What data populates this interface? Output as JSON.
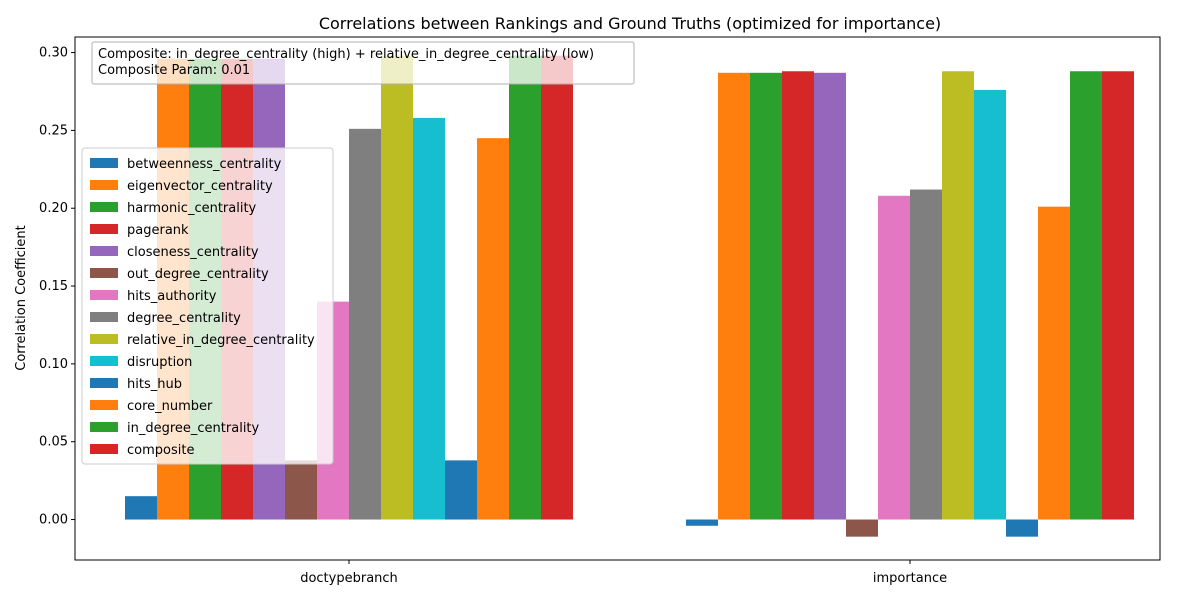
{
  "chart_data": {
    "type": "bar",
    "title": "Correlations between Rankings and Ground Truths (optimized for importance)",
    "xlabel": "",
    "ylabel": "Correlation Coefficient",
    "categories": [
      "doctypebranch",
      "importance"
    ],
    "ylim": [
      -0.026,
      0.31
    ],
    "yticks": [
      "0.00",
      "0.05",
      "0.10",
      "0.15",
      "0.20",
      "0.25",
      "0.30"
    ],
    "grid": false,
    "legend_placement": "center-left",
    "annotation": {
      "line1": "Composite: in_degree_centrality (high) + relative_in_degree_centrality (low)",
      "line2": "Composite Param: 0.01"
    },
    "series": [
      {
        "name": "betweenness_centrality",
        "color": "#1f77b4",
        "values": [
          0.015,
          -0.004
        ]
      },
      {
        "name": "eigenvector_centrality",
        "color": "#ff7f0e",
        "values": [
          0.296,
          0.287
        ]
      },
      {
        "name": "harmonic_centrality",
        "color": "#2ca02c",
        "values": [
          0.296,
          0.287
        ]
      },
      {
        "name": "pagerank",
        "color": "#d62728",
        "values": [
          0.296,
          0.288
        ]
      },
      {
        "name": "closeness_centrality",
        "color": "#9467bd",
        "values": [
          0.296,
          0.287
        ]
      },
      {
        "name": "out_degree_centrality",
        "color": "#8c564b",
        "values": [
          0.038,
          -0.011
        ]
      },
      {
        "name": "hits_authority",
        "color": "#e377c2",
        "values": [
          0.14,
          0.208
        ]
      },
      {
        "name": "degree_centrality",
        "color": "#7f7f7f",
        "values": [
          0.251,
          0.212
        ]
      },
      {
        "name": "relative_in_degree_centrality",
        "color": "#bcbd22",
        "values": [
          0.298,
          0.288
        ]
      },
      {
        "name": "disruption",
        "color": "#17becf",
        "values": [
          0.258,
          0.276
        ]
      },
      {
        "name": "hits_hub",
        "color": "#1f77b4",
        "values": [
          0.038,
          -0.011
        ]
      },
      {
        "name": "core_number",
        "color": "#ff7f0e",
        "values": [
          0.245,
          0.201
        ]
      },
      {
        "name": "in_degree_centrality",
        "color": "#2ca02c",
        "values": [
          0.298,
          0.288
        ]
      },
      {
        "name": "composite",
        "color": "#d62728",
        "values": [
          0.298,
          0.288
        ]
      }
    ]
  }
}
